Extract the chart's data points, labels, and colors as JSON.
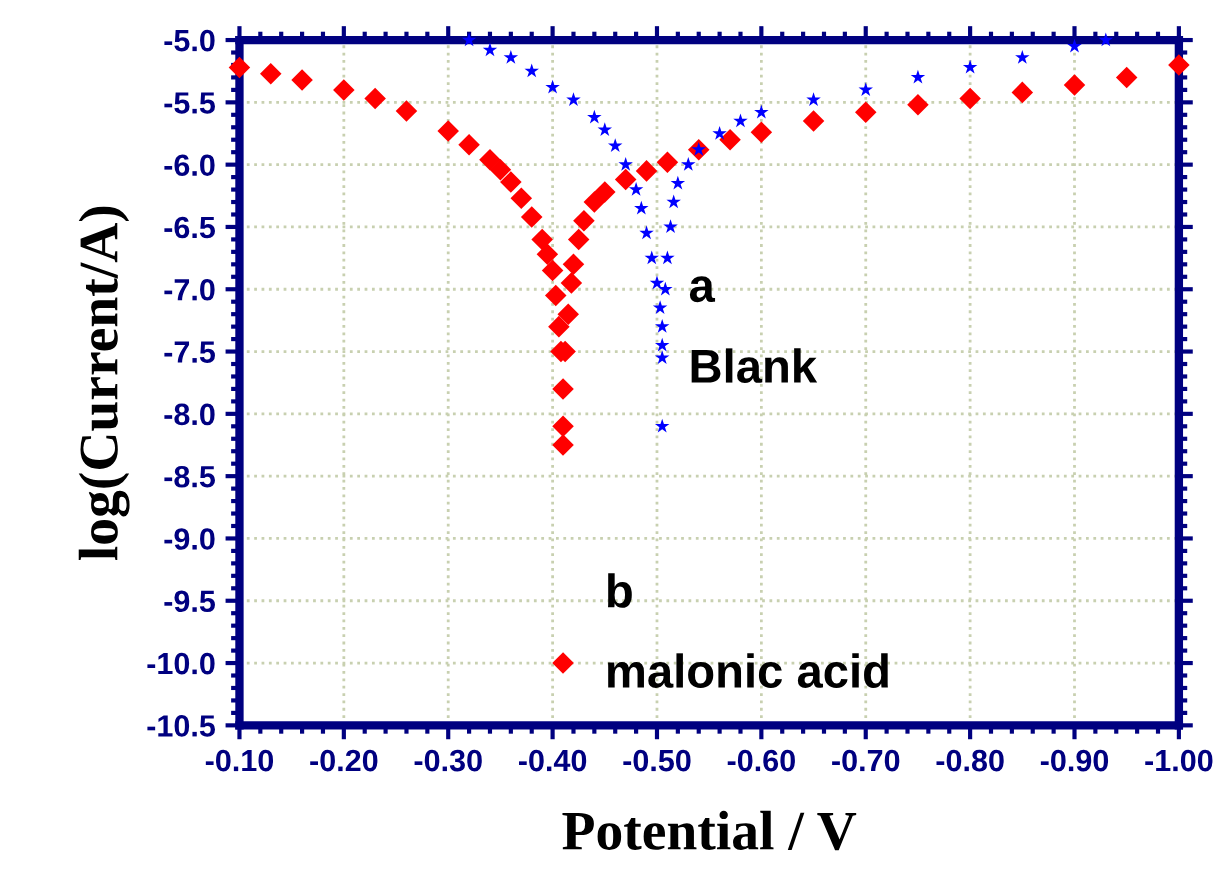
{
  "chart_data": {
    "type": "scatter",
    "xlabel": "Potential / V",
    "ylabel": "log(Current/A)",
    "xlim": [
      -0.1,
      -1.0
    ],
    "ylim": [
      -10.5,
      -5.0
    ],
    "xticks": [
      {
        "value": -0.1,
        "label": "-0.10"
      },
      {
        "value": -0.2,
        "label": "-0.20"
      },
      {
        "value": -0.3,
        "label": "-0.30"
      },
      {
        "value": -0.4,
        "label": "-0.40"
      },
      {
        "value": -0.5,
        "label": "-0.50"
      },
      {
        "value": -0.6,
        "label": "-0.60"
      },
      {
        "value": -0.7,
        "label": "-0.70"
      },
      {
        "value": -0.8,
        "label": "-0.80"
      },
      {
        "value": -0.9,
        "label": "-0.90"
      },
      {
        "value": -1.0,
        "label": "-1.00"
      }
    ],
    "yticks": [
      {
        "value": -5.0,
        "label": "-5.0"
      },
      {
        "value": -5.5,
        "label": "-5.5"
      },
      {
        "value": -6.0,
        "label": "-6.0"
      },
      {
        "value": -6.5,
        "label": "-6.5"
      },
      {
        "value": -7.0,
        "label": "-7.0"
      },
      {
        "value": -7.5,
        "label": "-7.5"
      },
      {
        "value": -8.0,
        "label": "-8.0"
      },
      {
        "value": -8.5,
        "label": "-8.5"
      },
      {
        "value": -9.0,
        "label": "-9.0"
      },
      {
        "value": -9.5,
        "label": "-9.5"
      },
      {
        "value": -10.0,
        "label": "-10.0"
      },
      {
        "value": -10.5,
        "label": "-10.5"
      }
    ],
    "grid": true,
    "series": [
      {
        "color": "#ff0000",
        "marker": "diamond",
        "x": [
          -0.1,
          -0.13,
          -0.16,
          -0.2,
          -0.23,
          -0.26,
          -0.3,
          -0.32,
          -0.34,
          -0.35,
          -0.36,
          -0.37,
          -0.38,
          -0.39,
          -0.395,
          -0.4,
          -0.403,
          -0.406,
          -0.408,
          -0.41,
          -0.41,
          -0.41,
          -0.41,
          -0.412,
          -0.415,
          -0.418,
          -0.42,
          -0.425,
          -0.43,
          -0.44,
          -0.45,
          -0.47,
          -0.49,
          -0.51,
          -0.54,
          -0.57,
          -0.6,
          -0.65,
          -0.7,
          -0.75,
          -0.8,
          -0.85,
          -0.9,
          -0.95,
          -1.0
        ],
        "values": [
          -5.22,
          -5.27,
          -5.32,
          -5.4,
          -5.47,
          -5.57,
          -5.73,
          -5.84,
          -5.96,
          -6.04,
          -6.14,
          -6.27,
          -6.42,
          -6.6,
          -6.72,
          -6.85,
          -7.05,
          -7.3,
          -7.5,
          -7.8,
          -8.1,
          -8.25,
          -10.0,
          -7.5,
          -7.2,
          -6.95,
          -6.8,
          -6.6,
          -6.45,
          -6.3,
          -6.22,
          -6.12,
          -6.05,
          -5.98,
          -5.88,
          -5.8,
          -5.74,
          -5.65,
          -5.58,
          -5.52,
          -5.47,
          -5.42,
          -5.36,
          -5.3,
          -5.2
        ]
      },
      {
        "color": "#0000ff",
        "marker": "star",
        "x": [
          -0.32,
          -0.34,
          -0.36,
          -0.38,
          -0.4,
          -0.42,
          -0.44,
          -0.45,
          -0.46,
          -0.47,
          -0.48,
          -0.485,
          -0.49,
          -0.495,
          -0.5,
          -0.503,
          -0.505,
          -0.505,
          -0.505,
          -0.505,
          -0.508,
          -0.51,
          -0.513,
          -0.516,
          -0.52,
          -0.53,
          -0.54,
          -0.56,
          -0.58,
          -0.6,
          -0.65,
          -0.7,
          -0.75,
          -0.8,
          -0.85,
          -0.9,
          -0.93
        ],
        "values": [
          -5.0,
          -5.08,
          -5.14,
          -5.25,
          -5.38,
          -5.48,
          -5.62,
          -5.72,
          -5.85,
          -6.0,
          -6.2,
          -6.35,
          -6.55,
          -6.75,
          -6.95,
          -7.15,
          -7.3,
          -7.45,
          -7.55,
          -8.1,
          -7.0,
          -6.75,
          -6.5,
          -6.3,
          -6.15,
          -6.0,
          -5.88,
          -5.75,
          -5.65,
          -5.58,
          -5.48,
          -5.4,
          -5.3,
          -5.22,
          -5.14,
          -5.05,
          -5.0
        ]
      }
    ],
    "annotations": [
      "a",
      "Blank",
      "b",
      "malonic acid"
    ]
  }
}
